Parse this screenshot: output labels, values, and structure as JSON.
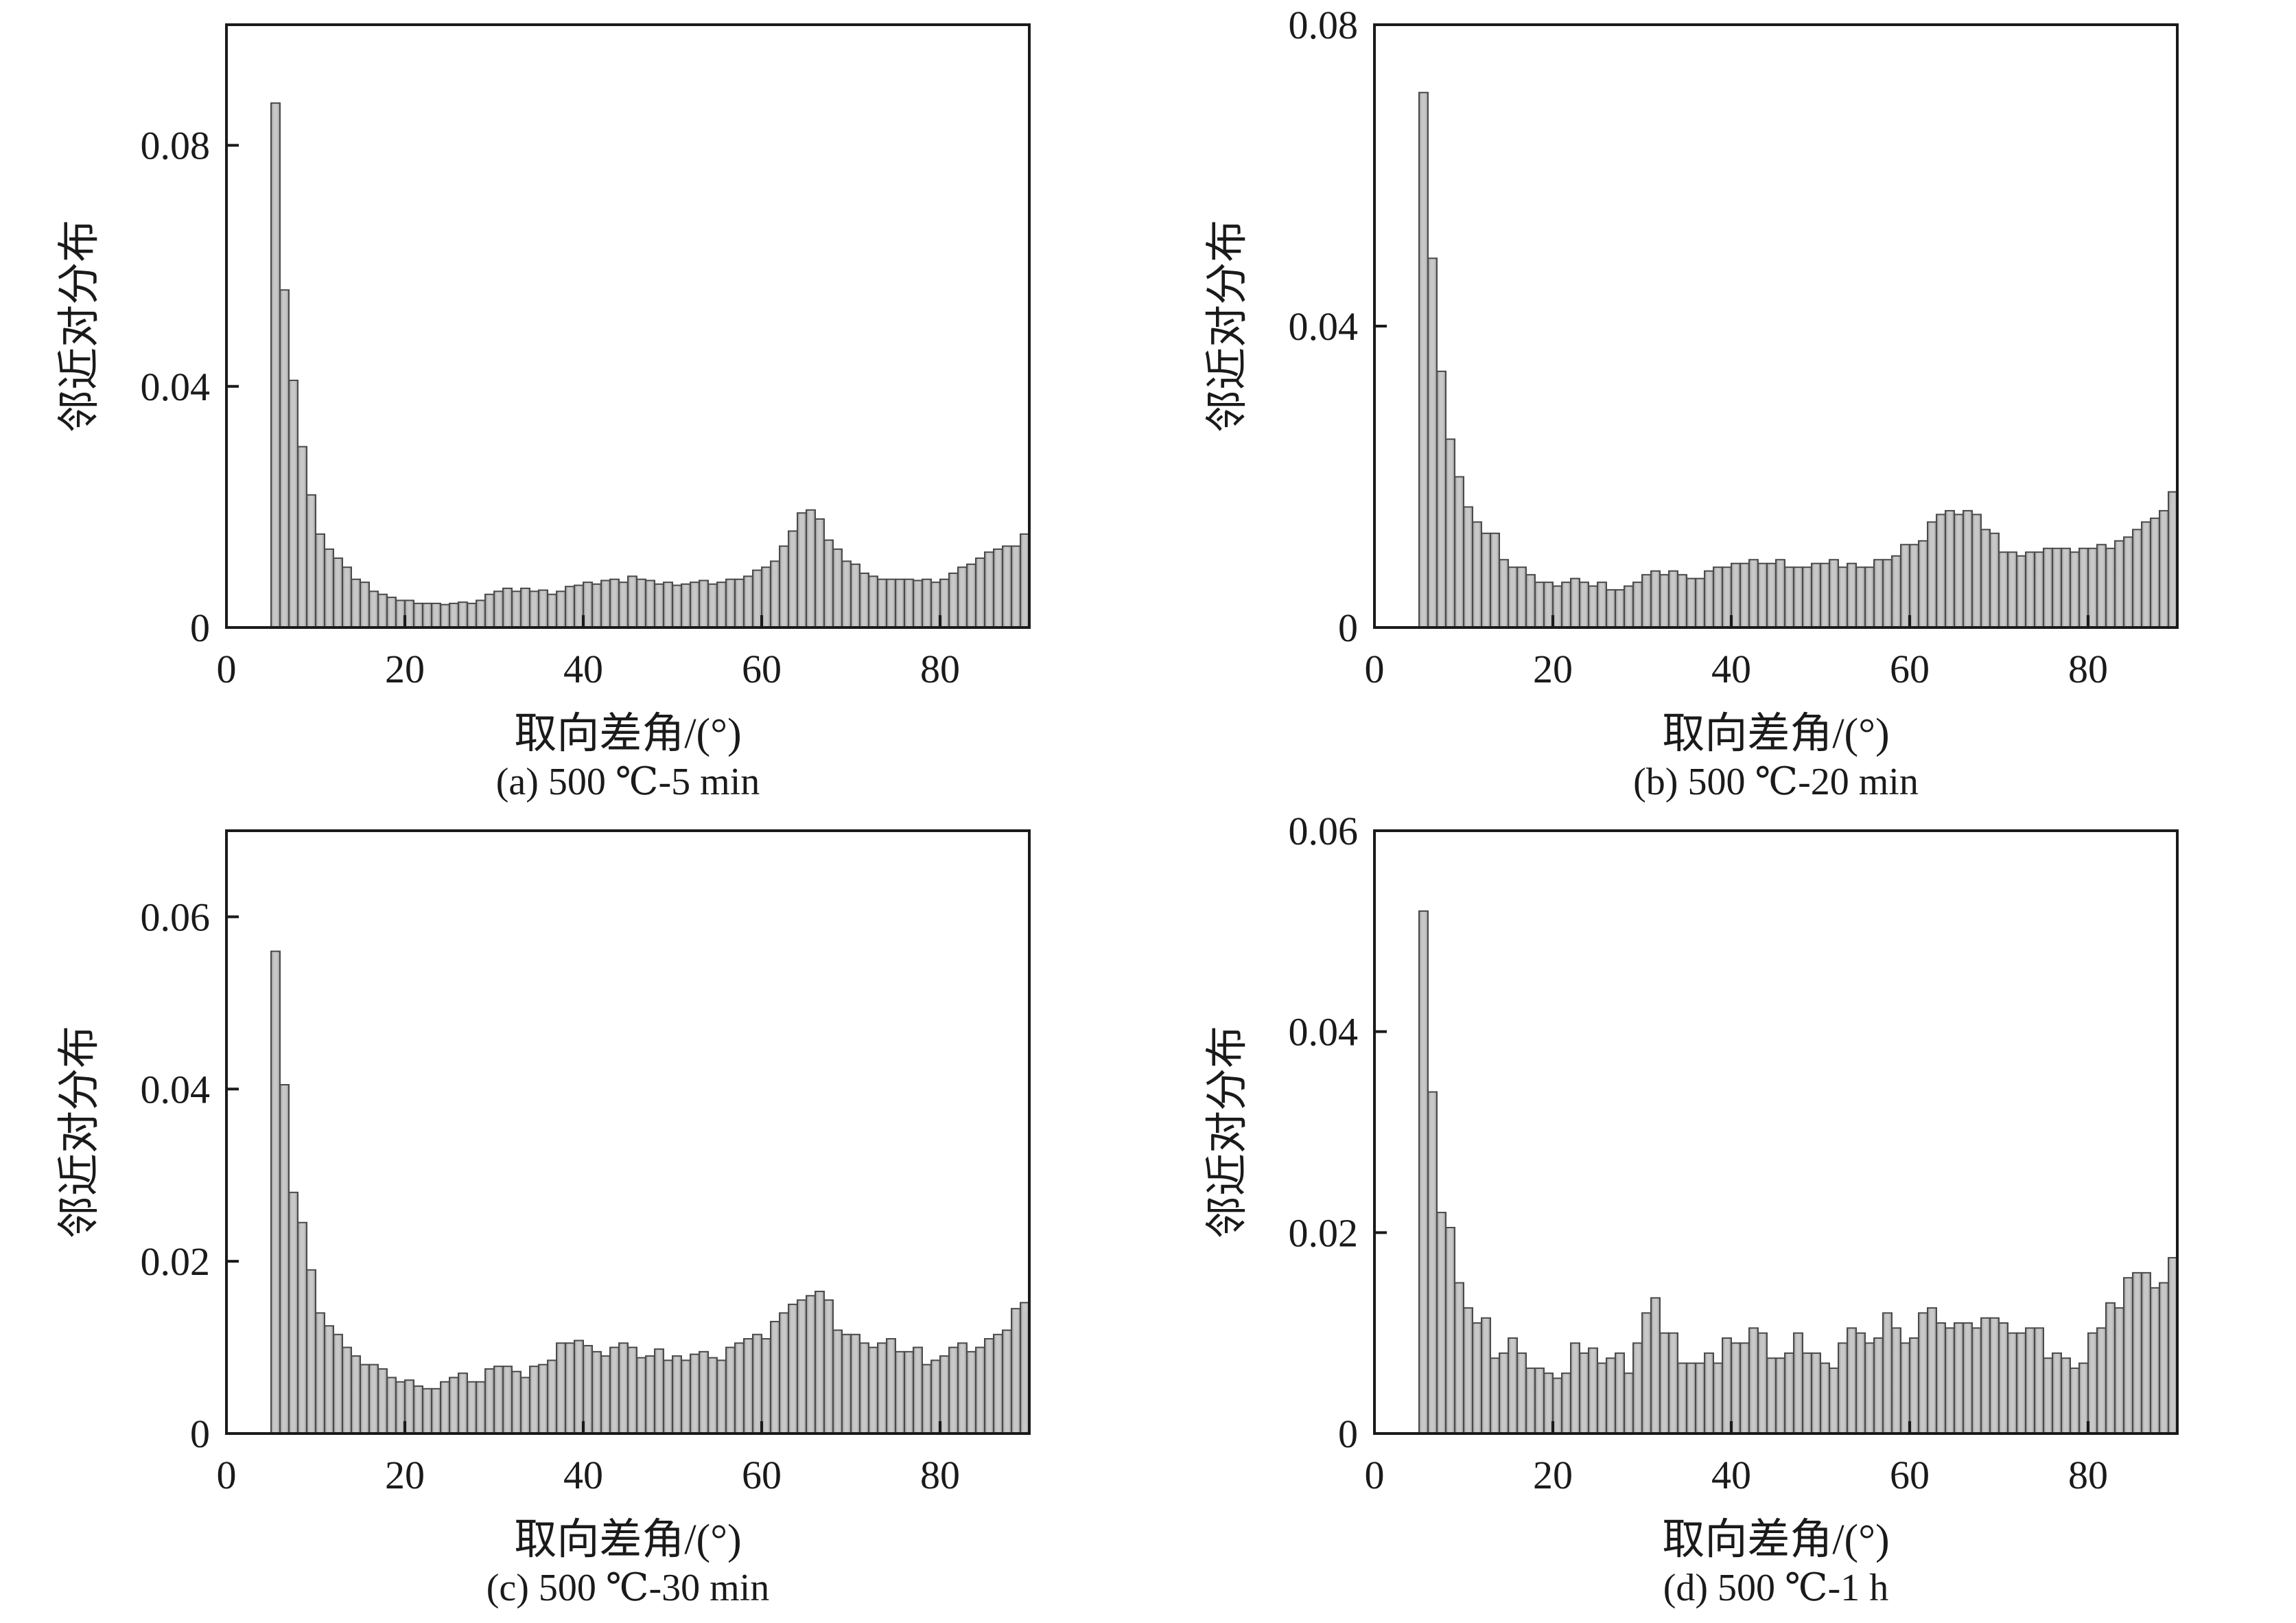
{
  "theme": {
    "background": "#ffffff",
    "axis_color": "#1a1a1a",
    "text_color": "#1a1a1a",
    "bar_fill_center": "#c8c8c8",
    "bar_fill_edge": "#8f8f8f",
    "bar_stroke": "#4a4a4a"
  },
  "chart_data": [
    {
      "type": "bar",
      "panel_label": "(a)",
      "title": "(a) 500 ℃-5 min",
      "xlabel": "取向差角/(°)",
      "ylabel": "邻近对分布",
      "xlim": [
        0,
        90
      ],
      "ylim": [
        0,
        0.1
      ],
      "xticks": [
        0,
        20,
        40,
        60,
        80
      ],
      "yticks": [
        0,
        0.04,
        0.08
      ],
      "grid": false,
      "bin_start": 5,
      "bin_width": 1,
      "values": [
        0.087,
        0.056,
        0.041,
        0.03,
        0.022,
        0.0155,
        0.013,
        0.0115,
        0.01,
        0.008,
        0.0075,
        0.006,
        0.0055,
        0.005,
        0.0045,
        0.0045,
        0.004,
        0.004,
        0.004,
        0.0038,
        0.004,
        0.0042,
        0.004,
        0.0045,
        0.0055,
        0.006,
        0.0065,
        0.006,
        0.0065,
        0.006,
        0.0062,
        0.0055,
        0.006,
        0.0068,
        0.007,
        0.0075,
        0.0072,
        0.0078,
        0.008,
        0.0075,
        0.0085,
        0.008,
        0.0078,
        0.0072,
        0.0075,
        0.007,
        0.0072,
        0.0075,
        0.0078,
        0.0072,
        0.0075,
        0.008,
        0.008,
        0.0085,
        0.0095,
        0.01,
        0.011,
        0.0135,
        0.016,
        0.019,
        0.0195,
        0.018,
        0.0145,
        0.013,
        0.011,
        0.0105,
        0.009,
        0.0085,
        0.008,
        0.008,
        0.008,
        0.008,
        0.0078,
        0.008,
        0.0075,
        0.008,
        0.009,
        0.01,
        0.0105,
        0.0115,
        0.0125,
        0.013,
        0.0135,
        0.0135,
        0.0155
      ]
    },
    {
      "type": "bar",
      "panel_label": "(b)",
      "title": "(b) 500 ℃-20 min",
      "xlabel": "取向差角/(°)",
      "ylabel": "邻近对分布",
      "xlim": [
        0,
        90
      ],
      "ylim": [
        0,
        0.08
      ],
      "xticks": [
        0,
        20,
        40,
        60,
        80
      ],
      "yticks": [
        0,
        0.04,
        0.08
      ],
      "grid": false,
      "bin_start": 5,
      "bin_width": 1,
      "values": [
        0.071,
        0.049,
        0.034,
        0.025,
        0.02,
        0.016,
        0.014,
        0.0125,
        0.0125,
        0.009,
        0.008,
        0.008,
        0.007,
        0.006,
        0.006,
        0.0055,
        0.006,
        0.0065,
        0.006,
        0.0055,
        0.006,
        0.005,
        0.005,
        0.0055,
        0.006,
        0.007,
        0.0075,
        0.007,
        0.0075,
        0.007,
        0.0065,
        0.0065,
        0.0075,
        0.008,
        0.008,
        0.0085,
        0.0085,
        0.009,
        0.0085,
        0.0085,
        0.009,
        0.008,
        0.008,
        0.008,
        0.0085,
        0.0085,
        0.009,
        0.008,
        0.0085,
        0.008,
        0.008,
        0.009,
        0.009,
        0.0095,
        0.011,
        0.011,
        0.0115,
        0.014,
        0.015,
        0.0155,
        0.015,
        0.0155,
        0.015,
        0.013,
        0.0125,
        0.01,
        0.01,
        0.0095,
        0.01,
        0.01,
        0.0105,
        0.0105,
        0.0105,
        0.01,
        0.0105,
        0.0105,
        0.011,
        0.0105,
        0.0115,
        0.012,
        0.013,
        0.014,
        0.0145,
        0.0155,
        0.018
      ]
    },
    {
      "type": "bar",
      "panel_label": "(c)",
      "title": "(c) 500 ℃-30 min",
      "xlabel": "取向差角/(°)",
      "ylabel": "邻近对分布",
      "xlim": [
        0,
        90
      ],
      "ylim": [
        0,
        0.07
      ],
      "xticks": [
        0,
        20,
        40,
        60,
        80
      ],
      "yticks": [
        0,
        0.02,
        0.04,
        0.06
      ],
      "grid": false,
      "bin_start": 5,
      "bin_width": 1,
      "values": [
        0.056,
        0.0405,
        0.028,
        0.0245,
        0.019,
        0.014,
        0.0125,
        0.0115,
        0.01,
        0.009,
        0.008,
        0.008,
        0.0075,
        0.0065,
        0.006,
        0.0062,
        0.0055,
        0.0052,
        0.0052,
        0.006,
        0.0065,
        0.007,
        0.006,
        0.006,
        0.0075,
        0.0078,
        0.0078,
        0.0072,
        0.0065,
        0.0078,
        0.008,
        0.0085,
        0.0105,
        0.0105,
        0.0108,
        0.0102,
        0.0095,
        0.009,
        0.01,
        0.0105,
        0.01,
        0.0088,
        0.009,
        0.0098,
        0.0085,
        0.009,
        0.0085,
        0.0092,
        0.0095,
        0.0088,
        0.0085,
        0.01,
        0.0105,
        0.011,
        0.0115,
        0.011,
        0.013,
        0.014,
        0.015,
        0.0155,
        0.016,
        0.0165,
        0.0155,
        0.012,
        0.0115,
        0.0115,
        0.0105,
        0.01,
        0.0105,
        0.011,
        0.0095,
        0.0095,
        0.01,
        0.008,
        0.0085,
        0.009,
        0.01,
        0.0105,
        0.0095,
        0.01,
        0.011,
        0.0115,
        0.012,
        0.0145,
        0.0152
      ]
    },
    {
      "type": "bar",
      "panel_label": "(d)",
      "title": "(d) 500 ℃-1 h",
      "xlabel": "取向差角/(°)",
      "ylabel": "邻近对分布",
      "xlim": [
        0,
        90
      ],
      "ylim": [
        0,
        0.06
      ],
      "xticks": [
        0,
        20,
        40,
        60,
        80
      ],
      "yticks": [
        0,
        0.02,
        0.04,
        0.06
      ],
      "grid": false,
      "bin_start": 5,
      "bin_width": 1,
      "values": [
        0.052,
        0.034,
        0.022,
        0.0205,
        0.015,
        0.0125,
        0.011,
        0.0115,
        0.0075,
        0.008,
        0.0095,
        0.008,
        0.0065,
        0.0065,
        0.006,
        0.0055,
        0.006,
        0.009,
        0.008,
        0.0085,
        0.007,
        0.0075,
        0.008,
        0.006,
        0.009,
        0.012,
        0.0135,
        0.01,
        0.01,
        0.007,
        0.007,
        0.007,
        0.008,
        0.007,
        0.0095,
        0.009,
        0.009,
        0.0105,
        0.01,
        0.0075,
        0.0075,
        0.008,
        0.01,
        0.008,
        0.008,
        0.007,
        0.0065,
        0.009,
        0.0105,
        0.01,
        0.009,
        0.0095,
        0.012,
        0.0105,
        0.009,
        0.0095,
        0.012,
        0.0125,
        0.011,
        0.0105,
        0.011,
        0.011,
        0.0105,
        0.0115,
        0.0115,
        0.011,
        0.01,
        0.01,
        0.0105,
        0.0105,
        0.0075,
        0.008,
        0.0075,
        0.0065,
        0.007,
        0.01,
        0.0105,
        0.013,
        0.0125,
        0.0155,
        0.016,
        0.016,
        0.0145,
        0.015,
        0.0175
      ]
    }
  ]
}
